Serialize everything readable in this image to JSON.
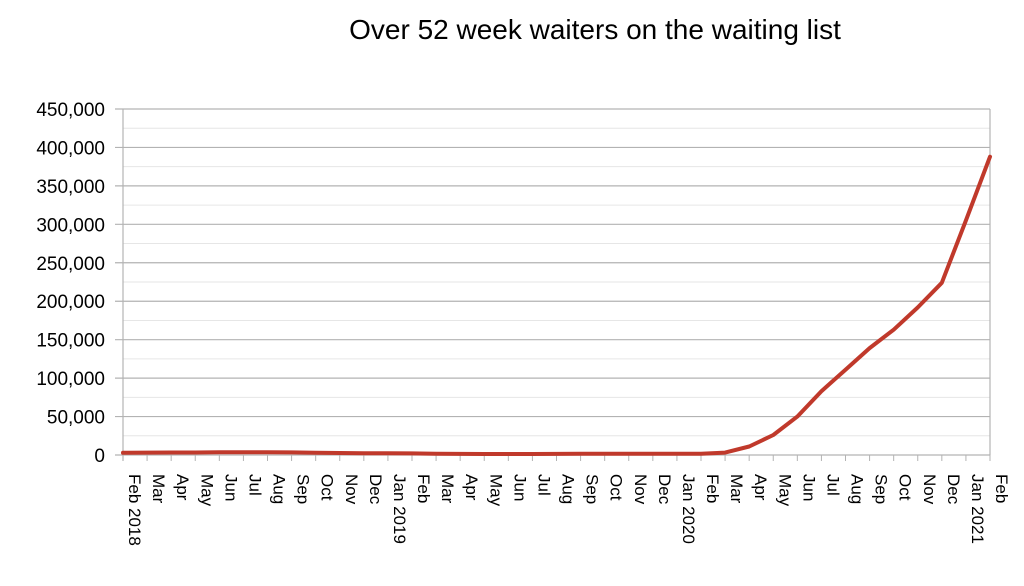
{
  "chart_data": {
    "type": "line",
    "title": "Over 52 week waiters on the waiting list",
    "xlabel": "",
    "ylabel": "",
    "ylim": [
      0,
      450000
    ],
    "yticks": [
      "0",
      "50,000",
      "100,000",
      "150,000",
      "200,000",
      "250,000",
      "300,000",
      "350,000",
      "400,000",
      "450,000"
    ],
    "grid": true,
    "categories": [
      "Feb 2018",
      "Mar",
      "Apr",
      "May",
      "Jun",
      "Jul",
      "Aug",
      "Sep",
      "Oct",
      "Nov",
      "Dec",
      "Jan 2019",
      "Feb",
      "Mar",
      "Apr",
      "May",
      "Jun",
      "Jul",
      "Aug",
      "Sep",
      "Oct",
      "Nov",
      "Dec",
      "Jan 2020",
      "Feb",
      "Mar",
      "Apr",
      "May",
      "Jun",
      "Jul",
      "Aug",
      "Sep",
      "Oct",
      "Nov",
      "Dec",
      "Jan 2021",
      "Feb"
    ],
    "series": [
      {
        "color": "#c0392b",
        "values": [
          2800,
          3100,
          3200,
          3300,
          3600,
          3700,
          3600,
          3400,
          3000,
          2600,
          2400,
          2300,
          2100,
          1600,
          1400,
          1300,
          1300,
          1300,
          1400,
          1500,
          1500,
          1600,
          1700,
          1600,
          1600,
          3100,
          11000,
          26000,
          50000,
          83000,
          111000,
          139000,
          163000,
          192000,
          224000,
          305000,
          388000
        ]
      }
    ]
  }
}
